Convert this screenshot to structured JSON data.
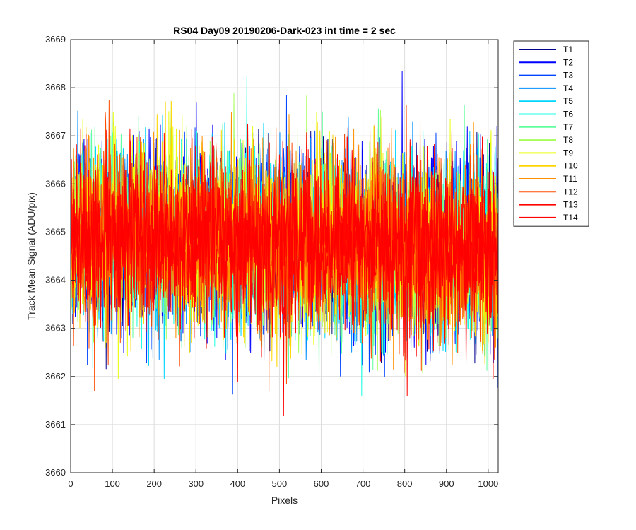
{
  "chart_data": {
    "type": "line",
    "title": "RS04 Day09 20190206-Dark-023 int time = 2 sec",
    "xlabel": "Pixels",
    "ylabel": "Track Mean Signal (ADU/pix)",
    "xlim": [
      0,
      1024
    ],
    "ylim": [
      3660,
      3669
    ],
    "xticks": [
      0,
      100,
      200,
      300,
      400,
      500,
      600,
      700,
      800,
      900,
      1000
    ],
    "yticks": [
      3660,
      3661,
      3662,
      3663,
      3664,
      3665,
      3666,
      3667,
      3668,
      3669
    ],
    "grid": true,
    "legend_position": "outside-right",
    "series_params": {
      "n_points": 1024,
      "level_start": 3665.0,
      "level_end": 3664.6,
      "noise_std": 0.9,
      "observed_min": 3660.6,
      "observed_max": 3668.7
    },
    "series": [
      {
        "name": "T1",
        "color": "#00008f"
      },
      {
        "name": "T2",
        "color": "#0000ff"
      },
      {
        "name": "T3",
        "color": "#0045ff"
      },
      {
        "name": "T4",
        "color": "#008fff"
      },
      {
        "name": "T5",
        "color": "#00d4ff"
      },
      {
        "name": "T6",
        "color": "#1cffe3"
      },
      {
        "name": "T7",
        "color": "#61ff9e"
      },
      {
        "name": "T8",
        "color": "#a6ff59"
      },
      {
        "name": "T9",
        "color": "#ebff14"
      },
      {
        "name": "T10",
        "color": "#ffd500"
      },
      {
        "name": "T11",
        "color": "#ff9000"
      },
      {
        "name": "T12",
        "color": "#ff4b00"
      },
      {
        "name": "T13",
        "color": "#ff0600"
      },
      {
        "name": "T14",
        "color": "#ff0000"
      }
    ]
  }
}
